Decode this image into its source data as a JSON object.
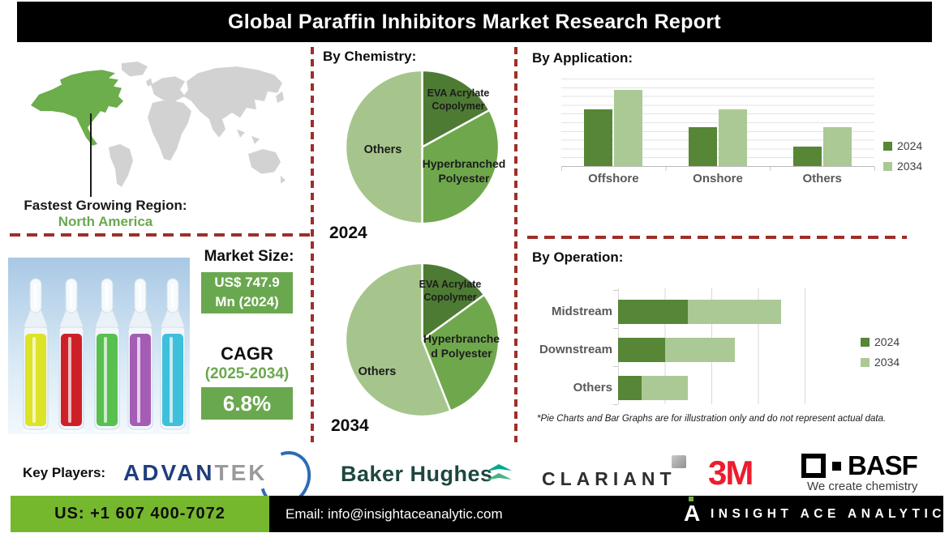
{
  "title": "Global Paraffin Inhibitors Market Research Report",
  "region": {
    "label": "Fastest Growing Region:",
    "value": "North America"
  },
  "market_size": {
    "label": "Market Size:",
    "value_line1": "US$ 747.9",
    "value_line2": "Mn (2024)"
  },
  "cagr": {
    "label": "CAGR",
    "period": "(2025-2034)",
    "value": "6.8%"
  },
  "footnote": "*Pie Charts and Bar Graphs are for illustration only and do not represent actual data.",
  "key_players": {
    "label": "Key Players:",
    "companies": [
      "ADVANTEK",
      "Baker Hughes",
      "CLARIANT",
      "3M",
      "BASF"
    ]
  },
  "logos": {
    "advantek_part1": "ADVAN",
    "advantek_part2": "TEK",
    "baker_hughes": "Baker Hughes",
    "clariant": "CLARIANT",
    "mmm": "3M",
    "basf": "BASF",
    "basf_tagline": "We create chemistry"
  },
  "footer": {
    "phone": "US: +1 607 400-7072",
    "email": "Email: info@insightaceanalytic.com",
    "brand": "INSIGHT ACE ANALYTIC"
  },
  "colors": {
    "accent_green": "#6aa84f",
    "footer_green": "#76b82d",
    "dashed_red": "#9e2f28",
    "map_gray": "#d2d2d2",
    "map_highlight": "#6cad4c",
    "series_2024": "#568636",
    "series_2034": "#abc994"
  },
  "chart_data": [
    {
      "id": "chemistry-2024",
      "type": "pie",
      "title": "By Chemistry:",
      "year_label": "2024",
      "labels": [
        "EVA Acrylate Copolymer",
        "Hyperbranched Polyester",
        "Others"
      ],
      "values": [
        17,
        33,
        50
      ],
      "colors": [
        "#4e7b33",
        "#6fa84c",
        "#a5c58c"
      ],
      "legend_position": "none"
    },
    {
      "id": "chemistry-2034",
      "type": "pie",
      "title": "By Chemistry:",
      "year_label": "2034",
      "labels": [
        "EVA Acrylate Copolymer",
        "Hyperbranched Polyester",
        "Others"
      ],
      "values": [
        15,
        29,
        56
      ],
      "colors": [
        "#4e7b33",
        "#6fa84c",
        "#a5c58c"
      ],
      "legend_position": "none"
    },
    {
      "id": "application",
      "type": "bar",
      "title": "By  Application:",
      "categories": [
        "Offshore",
        "Onshore",
        "Others"
      ],
      "series": [
        {
          "name": "2024",
          "color": "#568636",
          "values": [
            6.5,
            4.4,
            2.2
          ]
        },
        {
          "name": "2034",
          "color": "#abc994",
          "values": [
            8.7,
            6.5,
            4.4
          ]
        }
      ],
      "xlabel": "",
      "ylabel": "",
      "ylim": [
        0,
        10
      ],
      "grid": true,
      "legend_position": "right"
    },
    {
      "id": "operation",
      "type": "bar-horizontal-stacked",
      "title": "By Operation:",
      "categories": [
        "Midstream",
        "Downstream",
        "Others"
      ],
      "series": [
        {
          "name": "2024",
          "color": "#568636",
          "values": [
            1.5,
            1.0,
            0.5
          ]
        },
        {
          "name": "2034",
          "color": "#abc994",
          "values": [
            2.0,
            1.5,
            1.0
          ]
        }
      ],
      "xlabel": "",
      "ylabel": "",
      "xlim": [
        0,
        4
      ],
      "grid": true,
      "legend_position": "right"
    }
  ]
}
